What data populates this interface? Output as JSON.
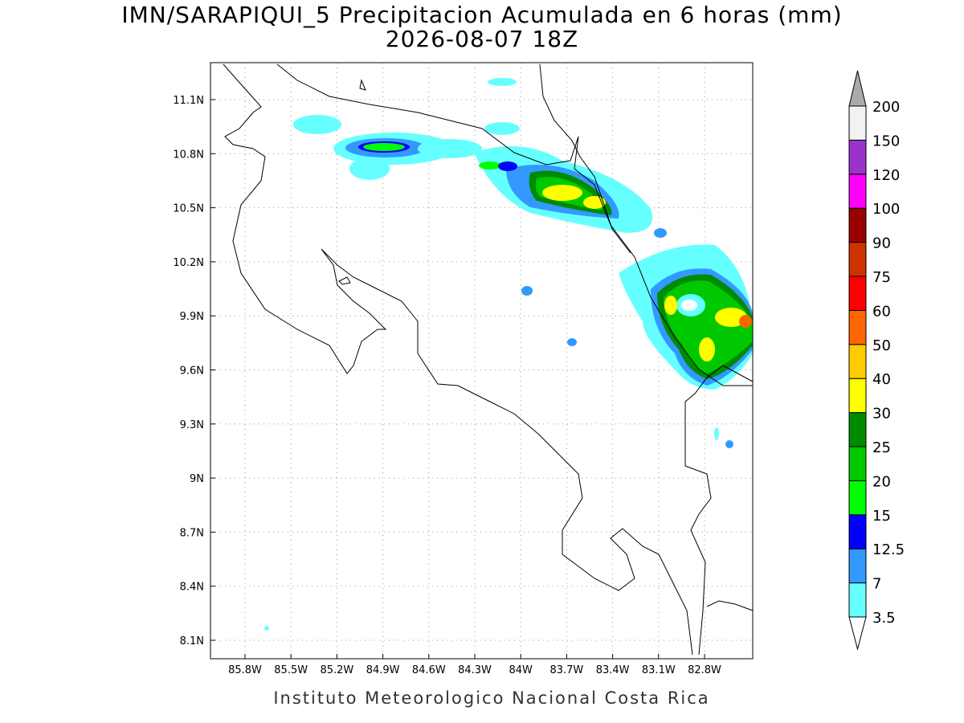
{
  "map": {
    "title": "IMN/SARAPIQUI_5 Precipitacion Acumulada en 6 horas (mm)",
    "subtitle": "2026-08-07 18Z",
    "lon_labels": [
      "85.8W",
      "85.5W",
      "85.2W",
      "84.9W",
      "84.6W",
      "84.3W",
      "84W",
      "83.7W",
      "83.4W",
      "83.1W",
      "82.8W"
    ],
    "lat_labels": [
      "11.1N",
      "10.8N",
      "10.5N",
      "10.2N",
      "9.9N",
      "9.6N",
      "9.3N",
      "9N",
      "8.7N",
      "8.4N",
      "8.1N"
    ],
    "colorbar": {
      "levels": [
        3.5,
        7,
        12.5,
        15,
        20,
        25,
        30,
        40,
        50,
        60,
        75,
        90,
        100,
        120,
        150,
        200
      ],
      "colors": [
        "#66ffff",
        "#3399ff",
        "#0000ff",
        "#00ff00",
        "#00c800",
        "#008c00",
        "#ffff00",
        "#ffcc00",
        "#ff6600",
        "#ff0000",
        "#cc3300",
        "#990000",
        "#ff00ff",
        "#9933cc",
        "#f2f2f2"
      ],
      "under_color": "#ffffff",
      "over_color": "#aaaaaa"
    },
    "footer": "Instituto Meteorologico Nacional Costa Rica"
  }
}
